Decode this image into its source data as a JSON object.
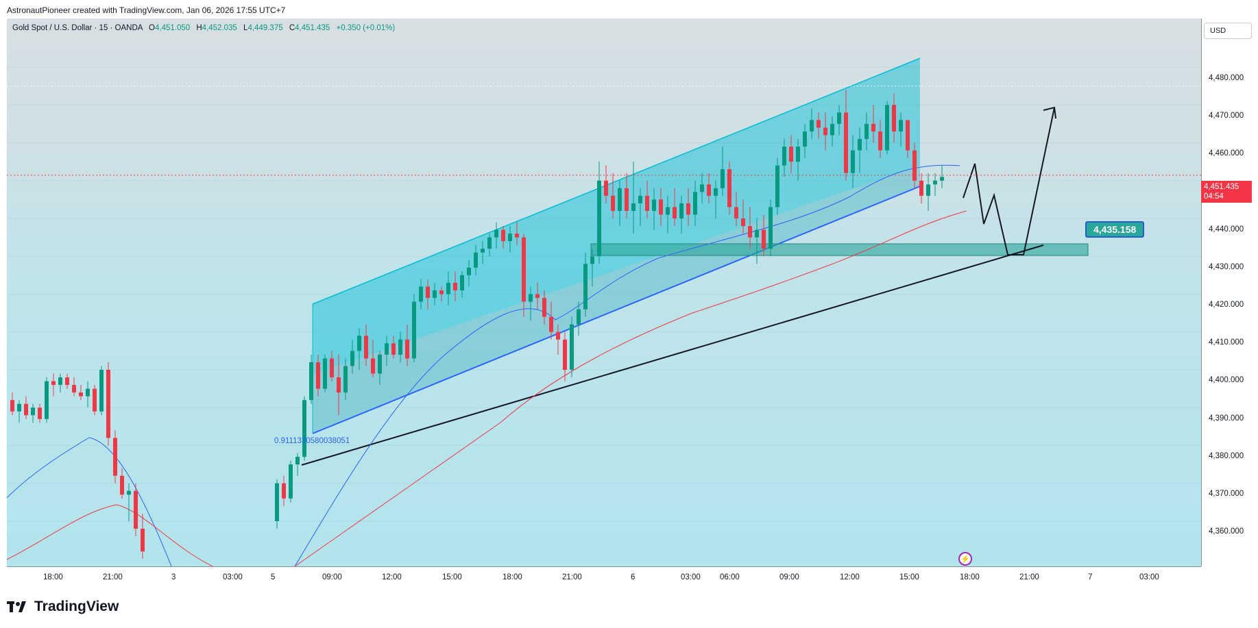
{
  "header": {
    "text": "AstronautPioneer created with TradingView.com, Jan 06, 2026 17:55 UTC+7"
  },
  "legend": {
    "symbol": "Gold Spot / U.S. Dollar · 15 · OANDA",
    "open_label": "O",
    "open": "4,451.050",
    "high_label": "H",
    "high": "4,452.035",
    "low_label": "L",
    "low": "4,449.375",
    "close_label": "C",
    "close": "4,451.435",
    "change": "+0.350 (+0.01%)"
  },
  "currency_button": "USD",
  "price_axis": {
    "ticks": [
      "4,480.000",
      "4,470.000",
      "4,460.000",
      "4,440.000",
      "4,430.000",
      "4,420.000",
      "4,410.000",
      "4,400.000",
      "4,390.000",
      "4,380.000",
      "4,370.000",
      "4,360.000"
    ],
    "current_price": "4,451.435",
    "countdown": "04:54"
  },
  "time_axis": {
    "ticks": [
      "18:00",
      "21:00",
      "3",
      "03:00",
      "5",
      "09:00",
      "12:00",
      "15:00",
      "18:00",
      "21:00",
      "6",
      "03:00",
      "06:00",
      "09:00",
      "12:00",
      "15:00",
      "18:00",
      "21:00",
      "7",
      "03:00"
    ]
  },
  "annotations": {
    "target_price": "4,435.158",
    "fib_label": "0.9111330580038051"
  },
  "brand": {
    "name": "TradingView"
  },
  "colors": {
    "up": "#089981",
    "down": "#f23645",
    "channel": "#00bcd4",
    "trendline": "#2962ff",
    "zone": "#2ba69a"
  }
}
